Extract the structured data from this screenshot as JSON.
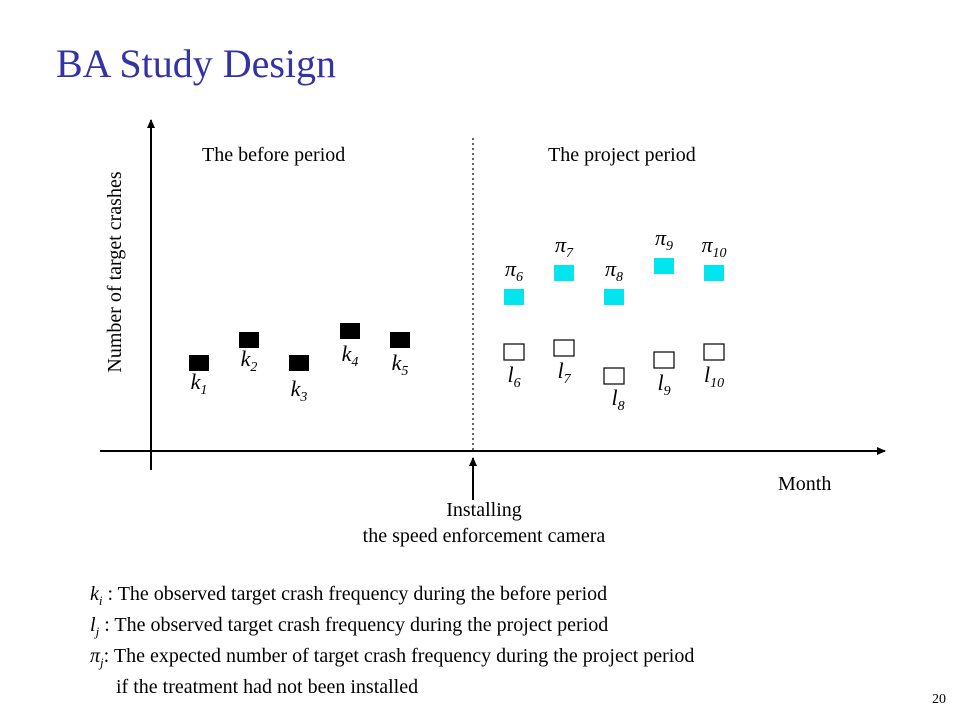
{
  "slide": {
    "title": "BA Study Design",
    "page_number": "20"
  },
  "diagram": {
    "y_axis_label": "Number of target crashes",
    "x_axis_label": "Month",
    "before_label": "The before period",
    "project_label": "The project period",
    "event_label_line1": "Installing",
    "event_label_line2": "the speed enforcement camera",
    "colors": {
      "observed_before": "#000000",
      "expected": "#00e5ee",
      "observed_project": "#ffffff"
    },
    "before_points": [
      {
        "base": "k",
        "sub": "1"
      },
      {
        "base": "k",
        "sub": "2"
      },
      {
        "base": "k",
        "sub": "3"
      },
      {
        "base": "k",
        "sub": "4"
      },
      {
        "base": "k",
        "sub": "5"
      }
    ],
    "expected_points": [
      {
        "base": "π",
        "sub": "6"
      },
      {
        "base": "π",
        "sub": "7"
      },
      {
        "base": "π",
        "sub": "8"
      },
      {
        "base": "π",
        "sub": "9"
      },
      {
        "base": "π",
        "sub": "10"
      }
    ],
    "project_points": [
      {
        "base": "l",
        "sub": "6"
      },
      {
        "base": "l",
        "sub": "7"
      },
      {
        "base": "l",
        "sub": "8"
      },
      {
        "base": "l",
        "sub": "9"
      },
      {
        "base": "l",
        "sub": "10"
      }
    ]
  },
  "legend": [
    {
      "base": "k",
      "sub": "i",
      "sep": " :",
      "text": " The observed target crash frequency during the before period"
    },
    {
      "base": "l",
      "sub": "j",
      "sep": " :",
      "text": " The observed target crash frequency during the project period"
    },
    {
      "base": "π",
      "sub": "j",
      "sep": ":",
      "text": " The expected number of target crash frequency during the project period"
    }
  ],
  "legend_continuation": "if the treatment had not been installed"
}
